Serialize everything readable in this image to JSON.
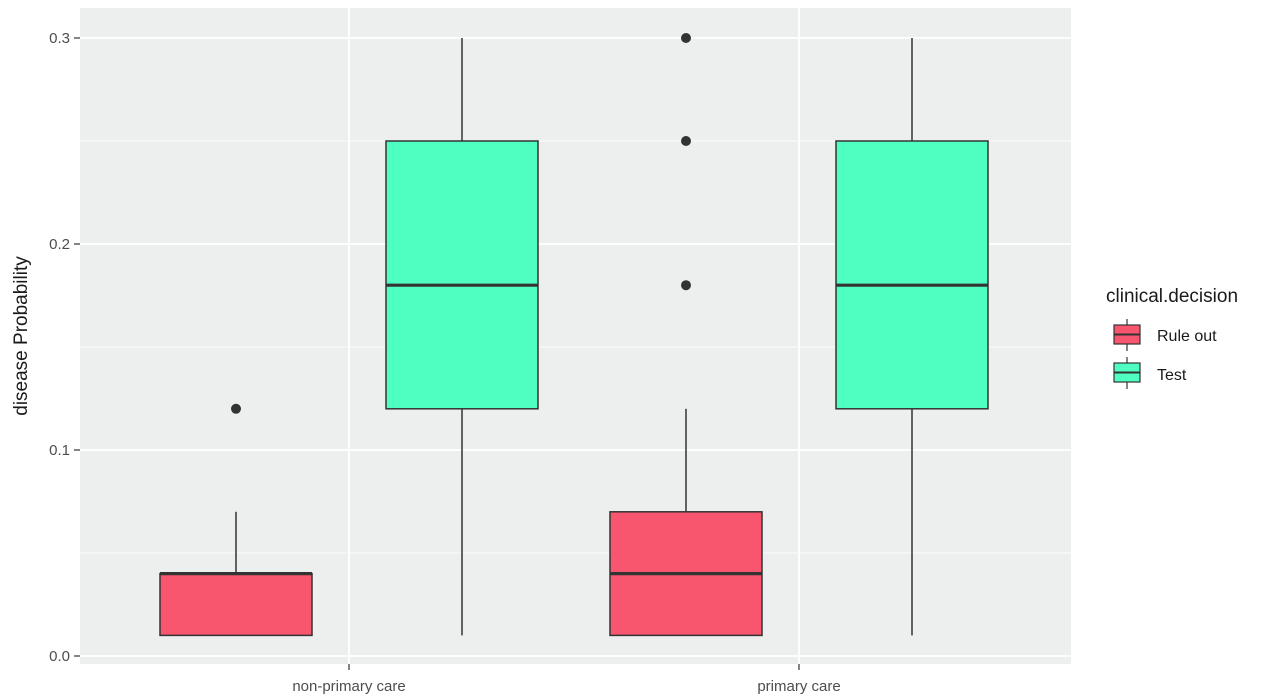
{
  "chart_data": {
    "type": "boxplot",
    "categories": [
      "non-primary care",
      "primary care"
    ],
    "ylabel": "disease Probability",
    "xlabel": "",
    "ylim": [
      0,
      0.3
    ],
    "yticks": [
      0.0,
      0.1,
      0.2,
      0.3
    ],
    "ytick_labels": [
      "0.0",
      "0.1",
      "0.2",
      "0.3"
    ],
    "grid": true,
    "legend": {
      "title": "clinical.decision",
      "placement": "right",
      "entries": [
        "Rule out",
        "Test"
      ]
    },
    "series": [
      {
        "name": "Rule out",
        "color": "#F8566E",
        "boxes": [
          {
            "category": "non-primary care",
            "lower_whisker": 0.01,
            "q1": 0.01,
            "median": 0.04,
            "q3": 0.04,
            "upper_whisker": 0.07,
            "outliers": [
              0.12
            ]
          },
          {
            "category": "primary care",
            "lower_whisker": 0.01,
            "q1": 0.01,
            "median": 0.04,
            "q3": 0.07,
            "upper_whisker": 0.12,
            "outliers": [
              0.18,
              0.25,
              0.3
            ]
          }
        ]
      },
      {
        "name": "Test",
        "color": "#4FFFC2",
        "boxes": [
          {
            "category": "non-primary care",
            "lower_whisker": 0.01,
            "q1": 0.12,
            "median": 0.18,
            "q3": 0.25,
            "upper_whisker": 0.3,
            "outliers": []
          },
          {
            "category": "primary care",
            "lower_whisker": 0.01,
            "q1": 0.12,
            "median": 0.18,
            "q3": 0.25,
            "upper_whisker": 0.3,
            "outliers": []
          }
        ]
      }
    ]
  }
}
